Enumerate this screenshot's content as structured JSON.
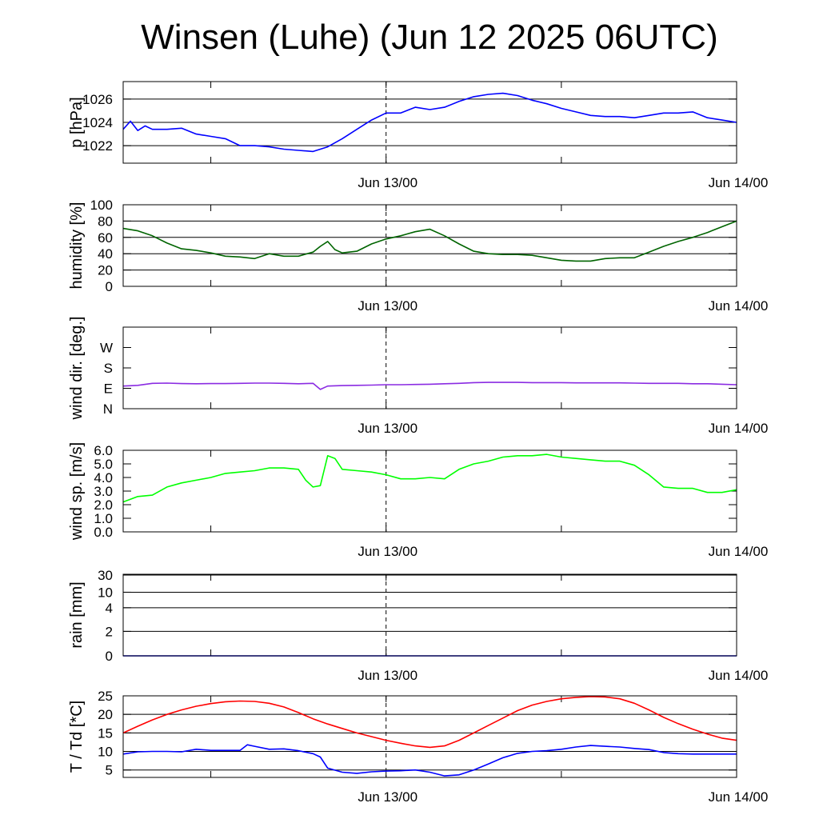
{
  "title": "Winsen (Luhe) (Jun 12 2025 06UTC)",
  "chart_data": [
    {
      "type": "line",
      "ylabel": "p [hPa]",
      "ylim": [
        1020.5,
        1027.5
      ],
      "yticks": [
        1022,
        1024,
        1026
      ],
      "ytick_labels": [
        "1022",
        "1024",
        "1026"
      ],
      "grid": true,
      "x": {
        "range_hours_from_start": [
          0,
          42
        ],
        "tick_labels": [
          "Jun 13/00",
          "Jun 14/00"
        ],
        "tick_hours": [
          18,
          42
        ]
      },
      "series": [
        {
          "color": "#0000ff",
          "x": [
            0,
            0.5,
            1,
            1.5,
            2,
            3,
            4,
            5,
            6,
            7,
            8,
            9,
            10,
            11,
            12,
            13,
            14,
            15,
            16,
            17,
            18,
            19,
            20,
            21,
            22,
            23,
            24,
            25,
            26,
            27,
            28,
            29,
            30,
            31,
            32,
            33,
            34,
            35,
            36,
            37,
            38,
            39,
            40,
            41,
            42
          ],
          "values": [
            1023.4,
            1024.1,
            1023.3,
            1023.7,
            1023.4,
            1023.4,
            1023.5,
            1023.0,
            1022.8,
            1022.6,
            1022.0,
            1022.0,
            1021.9,
            1021.7,
            1021.6,
            1021.5,
            1021.9,
            1022.6,
            1023.4,
            1024.2,
            1024.8,
            1024.8,
            1025.3,
            1025.1,
            1025.3,
            1025.8,
            1026.2,
            1026.4,
            1026.5,
            1026.3,
            1025.9,
            1025.6,
            1025.2,
            1024.9,
            1024.6,
            1024.5,
            1024.5,
            1024.4,
            1024.6,
            1024.8,
            1024.8,
            1024.9,
            1024.4,
            1024.2,
            1024.0
          ]
        }
      ]
    },
    {
      "type": "line",
      "ylabel": "humidity [%]",
      "ylim": [
        0,
        100
      ],
      "yticks": [
        0,
        20,
        40,
        60,
        80,
        100
      ],
      "ytick_labels": [
        "0",
        "20",
        "40",
        "60",
        "80",
        "100"
      ],
      "grid": true,
      "x": {
        "range_hours_from_start": [
          0,
          42
        ],
        "tick_labels": [
          "Jun 13/00",
          "Jun 14/00"
        ],
        "tick_hours": [
          18,
          42
        ]
      },
      "series": [
        {
          "color": "#006400",
          "x": [
            0,
            1,
            2,
            3,
            4,
            5,
            6,
            7,
            8,
            9,
            10,
            11,
            12,
            13,
            13.5,
            14,
            14.5,
            15,
            16,
            17,
            18,
            19,
            20,
            21,
            22,
            23,
            24,
            25,
            26,
            27,
            28,
            29,
            30,
            31,
            32,
            33,
            34,
            35,
            36,
            37,
            38,
            39,
            40,
            41,
            42
          ],
          "values": [
            71,
            68,
            62,
            53,
            46,
            44,
            41,
            37,
            36,
            34,
            40,
            37,
            37,
            42,
            49,
            55,
            45,
            41,
            43,
            52,
            58,
            62,
            67,
            70,
            62,
            52,
            43,
            40,
            39,
            39,
            38,
            35,
            32,
            31,
            31,
            34,
            35,
            35,
            42,
            49,
            55,
            60,
            66,
            73,
            80
          ]
        }
      ]
    },
    {
      "type": "line",
      "ylabel": "wind dir. [deg.]",
      "ylim": [
        0,
        360
      ],
      "yticks": [
        0,
        90,
        180,
        270
      ],
      "ytick_labels": [
        "N",
        "E",
        "S",
        "W"
      ],
      "grid": false,
      "x": {
        "range_hours_from_start": [
          0,
          42
        ],
        "tick_labels": [
          "Jun 13/00",
          "Jun 14/00"
        ],
        "tick_hours": [
          18,
          42
        ]
      },
      "series": [
        {
          "color": "#8a2be2",
          "x": [
            0,
            1,
            2,
            3,
            4,
            5,
            6,
            7,
            8,
            9,
            10,
            11,
            12,
            13,
            13.5,
            14,
            15,
            16,
            17,
            18,
            19,
            20,
            21,
            22,
            23,
            24,
            25,
            26,
            27,
            28,
            29,
            30,
            31,
            32,
            33,
            34,
            35,
            36,
            37,
            38,
            39,
            40,
            41,
            42
          ],
          "values": [
            100,
            103,
            112,
            113,
            111,
            110,
            111,
            111,
            112,
            113,
            113,
            112,
            110,
            112,
            85,
            100,
            102,
            103,
            104,
            106,
            106,
            107,
            108,
            110,
            112,
            115,
            116,
            116,
            116,
            115,
            115,
            115,
            114,
            114,
            114,
            114,
            113,
            112,
            112,
            112,
            110,
            110,
            108,
            106
          ]
        }
      ]
    },
    {
      "type": "line",
      "ylabel": "wind sp. [m/s]",
      "ylim": [
        0,
        6
      ],
      "yticks": [
        0,
        1,
        2,
        3,
        4,
        5,
        6
      ],
      "ytick_labels": [
        "0.0",
        "1.0",
        "2.0",
        "3.0",
        "4.0",
        "5.0",
        "6.0"
      ],
      "grid": false,
      "x": {
        "range_hours_from_start": [
          0,
          42
        ],
        "tick_labels": [
          "Jun 13/00",
          "Jun 14/00"
        ],
        "tick_hours": [
          18,
          42
        ]
      },
      "series": [
        {
          "color": "#00ff00",
          "x": [
            0,
            1,
            2,
            3,
            4,
            5,
            6,
            7,
            8,
            9,
            10,
            11,
            12,
            12.5,
            13,
            13.5,
            14,
            14.5,
            15,
            16,
            17,
            18,
            19,
            20,
            21,
            22,
            23,
            24,
            25,
            26,
            27,
            28,
            29,
            30,
            31,
            32,
            33,
            34,
            35,
            36,
            37,
            38,
            39,
            40,
            41,
            42
          ],
          "values": [
            2.2,
            2.6,
            2.7,
            3.3,
            3.6,
            3.8,
            4.0,
            4.3,
            4.4,
            4.5,
            4.7,
            4.7,
            4.6,
            3.8,
            3.3,
            3.4,
            5.6,
            5.4,
            4.6,
            4.5,
            4.4,
            4.2,
            3.9,
            3.9,
            4.0,
            3.9,
            4.6,
            5.0,
            5.2,
            5.5,
            5.6,
            5.6,
            5.7,
            5.5,
            5.4,
            5.3,
            5.2,
            5.2,
            4.9,
            4.2,
            3.3,
            3.2,
            3.2,
            2.9,
            2.9,
            3.1
          ]
        }
      ]
    },
    {
      "type": "line",
      "ylabel": "rain [mm]",
      "ylim": [
        0,
        30
      ],
      "yticks": [
        0,
        2,
        4,
        10,
        30
      ],
      "ytick_labels": [
        "0",
        "2",
        "4",
        "10",
        "30"
      ],
      "grid": true,
      "x": {
        "range_hours_from_start": [
          0,
          42
        ],
        "tick_labels": [
          "Jun 13/00",
          "Jun 14/00"
        ],
        "tick_hours": [
          18,
          42
        ]
      },
      "series": [
        {
          "color": "#0000ff",
          "x": [
            0,
            42
          ],
          "values": [
            0,
            0
          ]
        }
      ]
    },
    {
      "type": "line",
      "ylabel": "T / Td [*C]",
      "ylim": [
        3,
        25
      ],
      "yticks": [
        5,
        10,
        15,
        20,
        25
      ],
      "ytick_labels": [
        "5",
        "10",
        "15",
        "20",
        "25"
      ],
      "grid": true,
      "x": {
        "range_hours_from_start": [
          0,
          42
        ],
        "tick_labels": [
          "Jun 13/00",
          "Jun 14/00"
        ],
        "tick_hours": [
          18,
          42
        ]
      },
      "series": [
        {
          "color": "#ff0000",
          "x": [
            0,
            1,
            2,
            3,
            4,
            5,
            6,
            7,
            8,
            9,
            10,
            11,
            12,
            13,
            14,
            15,
            16,
            17,
            18,
            19,
            20,
            21,
            22,
            23,
            24,
            25,
            26,
            27,
            28,
            29,
            30,
            31,
            32,
            33,
            34,
            35,
            36,
            37,
            38,
            39,
            40,
            41,
            42
          ],
          "values": [
            15.0,
            16.8,
            18.5,
            20.0,
            21.2,
            22.2,
            22.9,
            23.4,
            23.6,
            23.5,
            23.0,
            22.0,
            20.5,
            18.8,
            17.4,
            16.2,
            15.0,
            14.0,
            13.0,
            12.2,
            11.5,
            11.1,
            11.5,
            13.0,
            15.0,
            17.0,
            19.0,
            21.0,
            22.5,
            23.5,
            24.2,
            24.6,
            24.8,
            24.7,
            24.2,
            23.0,
            21.2,
            19.2,
            17.5,
            16.0,
            14.7,
            13.6,
            13.0
          ]
        },
        {
          "color": "#0000ff",
          "x": [
            0,
            1,
            2,
            3,
            4,
            5,
            6,
            7,
            8,
            8.5,
            9,
            10,
            11,
            12,
            13,
            13.5,
            14,
            15,
            16,
            17,
            18,
            19,
            20,
            21,
            22,
            23,
            24,
            25,
            26,
            27,
            28,
            29,
            30,
            31,
            32,
            33,
            34,
            35,
            36,
            37,
            38,
            39,
            40,
            41,
            42
          ],
          "values": [
            9.3,
            9.9,
            10.0,
            10.0,
            9.9,
            10.6,
            10.3,
            10.3,
            10.3,
            11.8,
            11.4,
            10.6,
            10.7,
            10.2,
            9.4,
            8.5,
            5.5,
            4.4,
            4.1,
            4.5,
            4.7,
            4.8,
            5.0,
            4.4,
            3.4,
            3.7,
            5.0,
            6.6,
            8.3,
            9.5,
            10.0,
            10.2,
            10.6,
            11.2,
            11.6,
            11.4,
            11.2,
            10.8,
            10.5,
            9.7,
            9.4,
            9.3,
            9.3,
            9.3,
            9.3
          ]
        }
      ]
    }
  ]
}
